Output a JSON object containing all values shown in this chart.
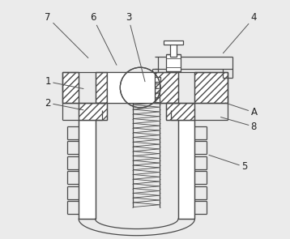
{
  "bg_color": "#ebebeb",
  "line_color": "#4a4a4a",
  "lw": 0.9,
  "label_fontsize": 8.5,
  "labels": {
    "7": [
      0.09,
      0.93,
      0.26,
      0.76
    ],
    "6": [
      0.28,
      0.93,
      0.38,
      0.73
    ],
    "3": [
      0.43,
      0.93,
      0.5,
      0.66
    ],
    "4": [
      0.96,
      0.93,
      0.83,
      0.78
    ],
    "1": [
      0.09,
      0.66,
      0.24,
      0.63
    ],
    "2": [
      0.09,
      0.57,
      0.24,
      0.54
    ],
    "A": [
      0.96,
      0.53,
      0.84,
      0.57
    ],
    "8": [
      0.96,
      0.47,
      0.82,
      0.51
    ],
    "5": [
      0.92,
      0.3,
      0.77,
      0.35
    ]
  }
}
